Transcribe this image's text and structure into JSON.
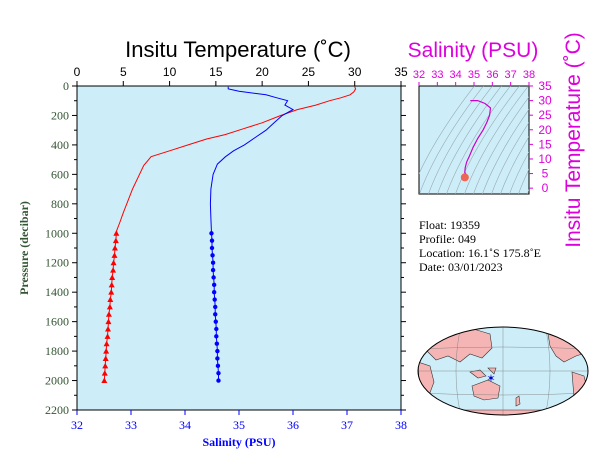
{
  "colors": {
    "panel_bg": "#cdeef8",
    "temperature": "#ff0000",
    "salinity": "#0000ff",
    "ts_curve": "#cc00cc",
    "title_temp": "#000000",
    "title_sal": "#dd00dd",
    "pressure_axis": "#335533",
    "land": "#f5b5b5",
    "ocean": "#cdeef8",
    "float_marker": "#0000cc"
  },
  "info": {
    "float": "Float:  19359",
    "profile": "Profile:  049",
    "location": "Location:  16.1˚S  175.8˚E",
    "date": "Date:  03/01/2023"
  },
  "chart_data": [
    {
      "type": "line",
      "title": "Insitu Temperature (˚C)",
      "xlabel": "Salinity (PSU)",
      "ylabel": "Pressure (decibar)",
      "top_axis": {
        "label": "Insitu Temperature (˚C)",
        "range": [
          0,
          35
        ],
        "ticks": [
          0,
          5,
          10,
          15,
          20,
          25,
          30,
          35
        ]
      },
      "bottom_axis": {
        "label": "Salinity (PSU)",
        "range": [
          32,
          38
        ],
        "ticks": [
          32,
          33,
          34,
          35,
          36,
          37,
          38
        ]
      },
      "y_axis": {
        "label": "Pressure (decibar)",
        "range": [
          0,
          2200
        ],
        "inverted": true,
        "ticks": [
          0,
          200,
          400,
          600,
          800,
          1000,
          1200,
          1400,
          1600,
          1800,
          2000,
          2200
        ]
      },
      "grid": false,
      "series": [
        {
          "name": "Insitu Temperature (˚C)",
          "axis": "top",
          "marker": "triangle",
          "points": [
            [
              30.0,
              5
            ],
            [
              30.1,
              20
            ],
            [
              29.9,
              40
            ],
            [
              29.5,
              60
            ],
            [
              28.5,
              80
            ],
            [
              27.3,
              100
            ],
            [
              25.8,
              130
            ],
            [
              23.8,
              160
            ],
            [
              22.0,
              200
            ],
            [
              20.0,
              250
            ],
            [
              18.0,
              290
            ],
            [
              16.0,
              330
            ],
            [
              14.0,
              360
            ],
            [
              12.0,
              400
            ],
            [
              10.0,
              440
            ],
            [
              8.0,
              480
            ],
            [
              7.2,
              540
            ],
            [
              6.6,
              620
            ],
            [
              6.0,
              700
            ],
            [
              5.5,
              780
            ],
            [
              5.0,
              860
            ],
            [
              4.6,
              930
            ],
            [
              4.3,
              980
            ],
            [
              4.25,
              1000
            ],
            [
              4.2,
              1050
            ],
            [
              4.1,
              1100
            ],
            [
              4.05,
              1150
            ],
            [
              3.95,
              1200
            ],
            [
              3.9,
              1250
            ],
            [
              3.8,
              1300
            ],
            [
              3.75,
              1350
            ],
            [
              3.7,
              1400
            ],
            [
              3.6,
              1450
            ],
            [
              3.55,
              1500
            ],
            [
              3.45,
              1550
            ],
            [
              3.4,
              1600
            ],
            [
              3.35,
              1650
            ],
            [
              3.3,
              1700
            ],
            [
              3.2,
              1750
            ],
            [
              3.15,
              1800
            ],
            [
              3.1,
              1850
            ],
            [
              3.05,
              1900
            ],
            [
              3.0,
              1950
            ],
            [
              2.95,
              2000
            ]
          ]
        },
        {
          "name": "Salinity (PSU)",
          "axis": "bottom",
          "marker": "circle",
          "points": [
            [
              34.8,
              5
            ],
            [
              34.8,
              20
            ],
            [
              35.0,
              35
            ],
            [
              35.3,
              50
            ],
            [
              35.5,
              60
            ],
            [
              35.7,
              80
            ],
            [
              35.9,
              100
            ],
            [
              35.85,
              130
            ],
            [
              36.0,
              160
            ],
            [
              35.8,
              200
            ],
            [
              35.65,
              250
            ],
            [
              35.5,
              300
            ],
            [
              35.3,
              350
            ],
            [
              35.1,
              400
            ],
            [
              34.9,
              440
            ],
            [
              34.75,
              480
            ],
            [
              34.6,
              530
            ],
            [
              34.52,
              600
            ],
            [
              34.48,
              700
            ],
            [
              34.47,
              800
            ],
            [
              34.48,
              900
            ],
            [
              34.49,
              1000
            ],
            [
              34.5,
              1050
            ],
            [
              34.5,
              1100
            ],
            [
              34.51,
              1150
            ],
            [
              34.52,
              1200
            ],
            [
              34.52,
              1250
            ],
            [
              34.53,
              1300
            ],
            [
              34.54,
              1350
            ],
            [
              34.54,
              1400
            ],
            [
              34.55,
              1450
            ],
            [
              34.56,
              1500
            ],
            [
              34.56,
              1550
            ],
            [
              34.57,
              1600
            ],
            [
              34.58,
              1650
            ],
            [
              34.58,
              1700
            ],
            [
              34.59,
              1750
            ],
            [
              34.6,
              1800
            ],
            [
              34.6,
              1850
            ],
            [
              34.61,
              1900
            ],
            [
              34.62,
              1950
            ],
            [
              34.62,
              2000
            ]
          ]
        }
      ]
    },
    {
      "type": "scatter",
      "title": "Salinity (PSU)",
      "xlabel": "Salinity (PSU)",
      "ylabel": "Insitu Temperature (˚C)",
      "x_axis": {
        "range": [
          32,
          38
        ],
        "ticks": [
          32,
          33,
          34,
          35,
          36,
          37,
          38
        ],
        "position": "top"
      },
      "y_axis": {
        "range": [
          -2,
          35
        ],
        "ticks": [
          0,
          5,
          10,
          15,
          20,
          25,
          30,
          35
        ],
        "position": "right"
      },
      "grid": false,
      "series": [
        {
          "name": "T-S",
          "points": [
            [
              34.6,
              4.3
            ],
            [
              34.55,
              4.8
            ],
            [
              34.5,
              5.5
            ],
            [
              34.52,
              7.0
            ],
            [
              34.6,
              9.0
            ],
            [
              34.75,
              11.0
            ],
            [
              34.95,
              14.0
            ],
            [
              35.2,
              17.0
            ],
            [
              35.5,
              20.0
            ],
            [
              35.7,
              22.5
            ],
            [
              35.85,
              25.0
            ],
            [
              35.9,
              27.5
            ],
            [
              35.6,
              29.0
            ],
            [
              35.2,
              30.0
            ],
            [
              34.8,
              30.0
            ]
          ]
        }
      ],
      "deep_cluster": {
        "x": 34.5,
        "y": 3.7
      }
    }
  ],
  "map": {
    "float_lon": 175.8,
    "float_lat": -16.1
  }
}
